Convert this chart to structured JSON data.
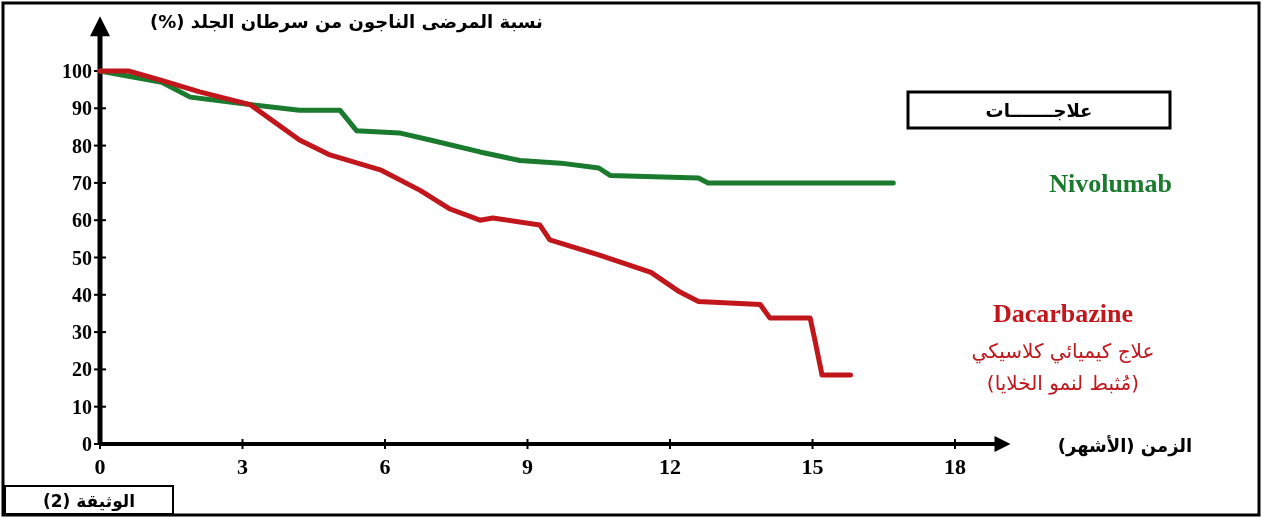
{
  "chart_data": {
    "type": "line",
    "xlabel": "الزمن (الأشهر)",
    "ylabel": "نسبة المرضى الناجون من سرطان الجلد (%)",
    "legend_title": "علاجـــــــات",
    "xlim": [
      0,
      19
    ],
    "ylim": [
      0,
      112
    ],
    "xticks": [
      0,
      3,
      6,
      9,
      12,
      15,
      18
    ],
    "yticks": [
      0,
      10,
      20,
      30,
      40,
      50,
      60,
      70,
      80,
      90,
      100
    ],
    "grid": false,
    "line_style": "solid",
    "series": [
      {
        "name": "Nivolumab",
        "color": "#1a7a2e",
        "x": [
          0,
          1.3,
          1.9,
          2.9,
          4.2,
          5.05,
          5.4,
          6.3,
          6.95,
          8.0,
          8.84,
          9.7,
          10.5,
          10.74,
          12.6,
          12.8,
          16.7
        ],
        "values": [
          100,
          97,
          93,
          91.4,
          89.5,
          89.5,
          84,
          83.4,
          81.5,
          78.3,
          76,
          75.3,
          74,
          72,
          71.3,
          70,
          70
        ]
      },
      {
        "name": "Dacarbazine",
        "color": "#c0161c",
        "x": [
          0,
          0.6,
          1.26,
          2.1,
          3.16,
          4.2,
          4.84,
          5.9,
          6.74,
          7.37,
          8.0,
          8.27,
          9.26,
          9.47,
          10.5,
          11.6,
          12.2,
          12.6,
          13.9,
          14.1,
          14.95,
          15.05,
          15.2,
          15.8
        ],
        "values": [
          100,
          100,
          97.6,
          94.4,
          91,
          81.5,
          77.5,
          73.5,
          68,
          63,
          60,
          60.6,
          58.7,
          54.7,
          50.7,
          46,
          40.8,
          38.2,
          37.4,
          33.8,
          33.8,
          27.9,
          18.5,
          18.5
        ]
      }
    ],
    "annotations": [
      "علاج كيميائي كلاسيكي",
      "(مُثبط لنمو الخلايا)",
      "الوثيقة (2)"
    ]
  }
}
